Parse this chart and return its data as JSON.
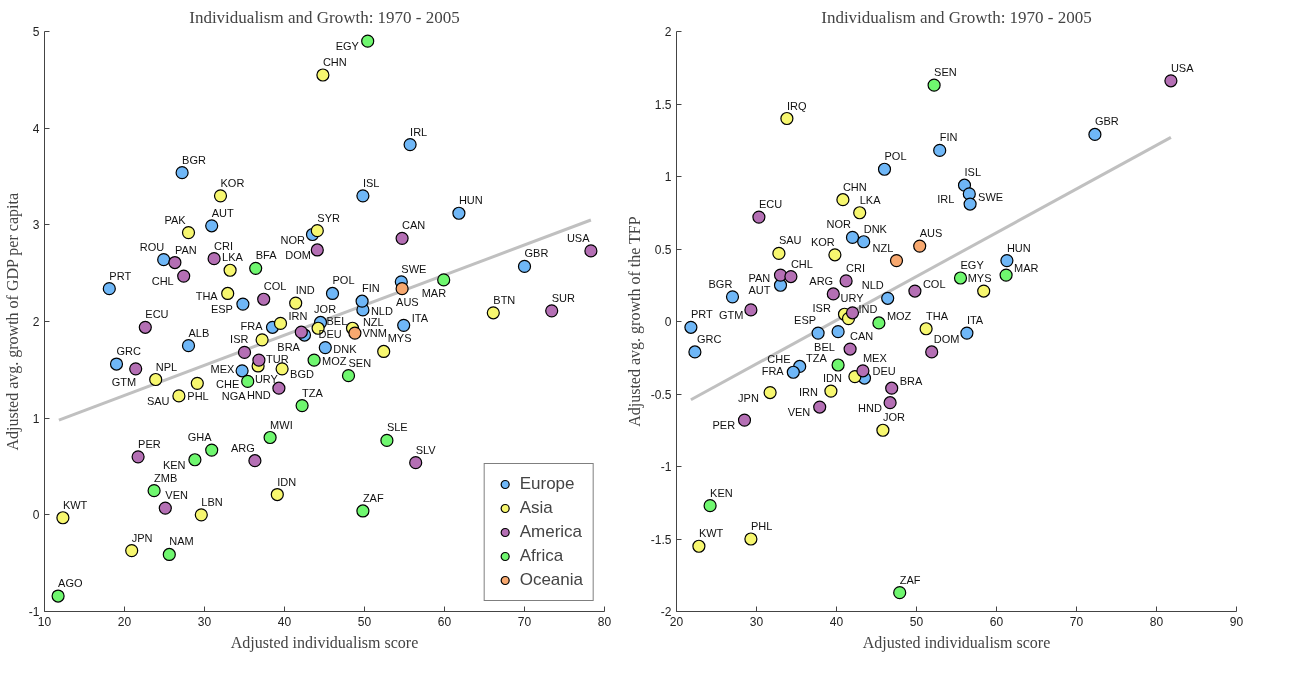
{
  "chart_data": [
    {
      "type": "scatter",
      "title": "Individualism and Growth: 1970 - 2005",
      "xlabel": "Adjusted individualism score",
      "ylabel": "Adjusted avg. growth of GDP per capita",
      "xlim": [
        10,
        80
      ],
      "xticks": [
        10,
        20,
        30,
        40,
        50,
        60,
        70,
        80
      ],
      "ylim": [
        -1,
        5
      ],
      "yticks": [
        -1,
        0,
        1,
        2,
        3,
        4,
        5
      ],
      "legend": "bottom right",
      "marker": "circle",
      "series": [
        {
          "name": "Europe",
          "color": "#6fb7f7",
          "x": [
            18.1,
            27.2,
            30.9,
            24.9,
            34.8,
            28.0,
            19.0,
            38.5,
            42.5,
            44.5,
            34.7,
            45.1,
            54.9,
            49.8,
            55.7,
            49.8,
            61.8,
            43.5,
            70.0,
            54.6,
            46.0,
            49.7
          ],
          "values": [
            2.34,
            3.54,
            2.99,
            2.64,
            2.18,
            1.75,
            1.56,
            1.94,
            1.86,
            1.99,
            1.49,
            1.73,
            1.96,
            2.12,
            3.83,
            3.3,
            3.12,
            2.9,
            2.57,
            2.41,
            2.29,
            2.21
          ],
          "value_labels": [
            "PRT",
            "BGR",
            "AUT",
            "ROU",
            "ESP",
            "ALB",
            "GRC",
            "FRA",
            "DEU",
            "BEL",
            "CHE",
            "DNK",
            "ITA",
            "NLD",
            "IRL",
            "ISL",
            "HUN",
            "NOR",
            "GBR",
            "SWE",
            "POL",
            "FIN"
          ]
        },
        {
          "name": "Asia",
          "color": "#f7f76f",
          "x": [
            32.0,
            28.0,
            33.2,
            32.9,
            41.4,
            23.9,
            29.1,
            26.8,
            39.5,
            44.2,
            48.5,
            37.2,
            36.7,
            39.7,
            52.4,
            66.1,
            39.1,
            12.3,
            29.6,
            20.9,
            44.8,
            44.1
          ],
          "values": [
            3.3,
            2.92,
            2.53,
            2.29,
            2.19,
            1.4,
            1.36,
            1.23,
            1.98,
            1.93,
            1.93,
            1.81,
            1.54,
            1.51,
            1.69,
            2.09,
            0.21,
            -0.03,
            0.0,
            -0.37,
            4.55,
            2.94
          ],
          "value_labels": [
            "KOR",
            "PAK",
            "LKA",
            "THA",
            "IND",
            "NPL",
            "PHL",
            "SAU",
            "IRN",
            "JOR",
            "VNM",
            "ISR",
            "TUR",
            "BGD",
            "MYS",
            "BTN",
            "IDN",
            "KWT",
            "LBN",
            "JPN",
            "CHN",
            "SYR"
          ]
        },
        {
          "name": "America",
          "color": "#b46fb4",
          "x": [
            26.3,
            27.4,
            31.2,
            37.4,
            22.6,
            21.4,
            42.1,
            35.0,
            36.8,
            39.3,
            73.4,
            21.7,
            36.3,
            56.4,
            25.1,
            44.1,
            54.7,
            78.3
          ],
          "values": [
            2.61,
            2.47,
            2.65,
            2.23,
            1.94,
            1.51,
            1.89,
            1.68,
            1.6,
            1.31,
            2.11,
            0.6,
            0.56,
            0.54,
            0.07,
            2.74,
            2.86,
            2.73
          ],
          "value_labels": [
            "PAN",
            "CHL",
            "CRI",
            "COL",
            "ECU",
            "GTM",
            "BRA",
            "MEX",
            "URY",
            "HND",
            "SUR",
            "PER",
            "ARG",
            "SLV",
            "VEN",
            "DOM",
            "CAN",
            "USA"
          ]
        },
        {
          "name": "Africa",
          "color": "#6ff76f",
          "x": [
            36.4,
            35.4,
            43.7,
            48.0,
            42.2,
            38.2,
            52.8,
            30.9,
            28.8,
            23.7,
            49.8,
            25.6,
            11.7,
            50.4,
            59.9
          ],
          "values": [
            2.55,
            1.38,
            1.6,
            1.44,
            1.13,
            0.8,
            0.77,
            0.67,
            0.57,
            0.25,
            0.04,
            -0.41,
            -0.84,
            4.9,
            2.43
          ],
          "value_labels": [
            "BFA",
            "NGA",
            "MOZ",
            "SEN",
            "TZA",
            "MWI",
            "SLE",
            "GHA",
            "KEN",
            "ZMB",
            "ZAF",
            "NAM",
            "AGO",
            "EGY",
            "MAR"
          ]
        },
        {
          "name": "Oceania",
          "color": "#f7a86f",
          "x": [
            48.8,
            54.7
          ],
          "values": [
            1.88,
            2.34
          ],
          "value_labels": [
            "NZL",
            "AUS"
          ]
        },
        {
          "type": "line",
          "marker": "none",
          "color": "#c0c0c0",
          "x": [
            11.8,
            78.3
          ],
          "values": [
            0.98,
            3.05
          ]
        }
      ]
    },
    {
      "type": "scatter",
      "title": "Individualism and Growth: 1970 - 2005",
      "xlabel": "Adjusted individualism score",
      "ylabel": "Adjusted avg. growth of the TFP",
      "xlim": [
        20,
        90
      ],
      "xticks": [
        20,
        30,
        40,
        50,
        60,
        70,
        80,
        90
      ],
      "ylim": [
        -2,
        2
      ],
      "yticks": [
        -2,
        -1.5,
        -1,
        -0.5,
        0,
        0.5,
        1,
        1.5,
        2
      ],
      "marker": "circle",
      "series": [
        {
          "color": "#6fb7f7",
          "x": [
            21.8,
            22.3,
            27.0,
            33.0,
            37.7,
            40.2,
            35.4,
            34.6,
            43.5,
            46.4,
            42.0,
            43.4,
            46.0,
            52.9,
            56.0,
            56.6,
            56.7,
            72.3,
            61.3,
            56.3
          ],
          "values": [
            -0.04,
            -0.21,
            0.17,
            0.25,
            -0.08,
            -0.07,
            -0.31,
            -0.35,
            -0.39,
            0.16,
            0.58,
            0.55,
            1.05,
            1.18,
            0.94,
            0.88,
            0.81,
            1.29,
            0.42,
            -0.08
          ],
          "value_labels": [
            "PRT",
            "GRC",
            "BGR",
            "AUT",
            "ESP",
            "BEL",
            "FRA",
            "CHE",
            "DEU",
            "NLD",
            "NOR",
            "DNK",
            "POL",
            "FIN",
            "ISL",
            "IRL",
            "SWE",
            "GBR",
            "HUN",
            "ITA"
          ]
        },
        {
          "color": "#f7f76f",
          "x": [
            33.8,
            32.8,
            39.8,
            40.8,
            42.9,
            41.0,
            41.5,
            42.3,
            39.3,
            31.7,
            45.8,
            51.2,
            58.4,
            22.8,
            29.3
          ],
          "values": [
            1.4,
            0.47,
            0.46,
            0.84,
            0.75,
            0.05,
            0.02,
            -0.38,
            -0.48,
            -0.49,
            -0.75,
            -0.05,
            0.21,
            -1.55,
            -1.5
          ],
          "value_labels": [
            "IRQ",
            "SAU",
            "KOR",
            "CHN",
            "LKA",
            "IND",
            "ISR",
            "IDN",
            "IRN",
            "JPN",
            "JOR",
            "THA",
            "MYS",
            "KWT",
            "PHL"
          ]
        },
        {
          "color": "#b46fb4",
          "x": [
            30.3,
            33.0,
            34.3,
            41.2,
            39.6,
            29.3,
            42.0,
            49.8,
            41.7,
            51.9,
            43.3,
            46.9,
            46.7,
            37.9,
            28.5,
            81.8
          ],
          "values": [
            0.72,
            0.32,
            0.31,
            0.28,
            0.19,
            0.08,
            0.06,
            0.21,
            -0.19,
            -0.21,
            -0.34,
            -0.46,
            -0.56,
            -0.59,
            -0.68,
            1.66
          ],
          "value_labels": [
            "ECU",
            "PAN",
            "CHL",
            "CRI",
            "ARG",
            "GTM",
            "URY",
            "COL",
            "CAN",
            "DOM",
            "MEX",
            "BRA",
            "HND",
            "VEN",
            "PER",
            "USA"
          ]
        },
        {
          "color": "#6ff76f",
          "x": [
            52.2,
            45.3,
            55.5,
            61.2,
            40.2,
            24.2,
            47.9
          ],
          "values": [
            1.63,
            -0.01,
            0.3,
            0.32,
            -0.3,
            -1.27,
            -1.87
          ],
          "value_labels": [
            "SEN",
            "MOZ",
            "EGY",
            "MAR",
            "TZA",
            "KEN",
            "ZAF"
          ]
        },
        {
          "color": "#f7a86f",
          "x": [
            50.4,
            47.5
          ],
          "values": [
            0.52,
            0.42
          ],
          "value_labels": [
            "AUS",
            "NZL"
          ]
        },
        {
          "type": "line",
          "marker": "none",
          "color": "#c0c0c0",
          "x": [
            21.8,
            81.8
          ],
          "values": [
            -0.54,
            1.27
          ]
        }
      ]
    }
  ]
}
